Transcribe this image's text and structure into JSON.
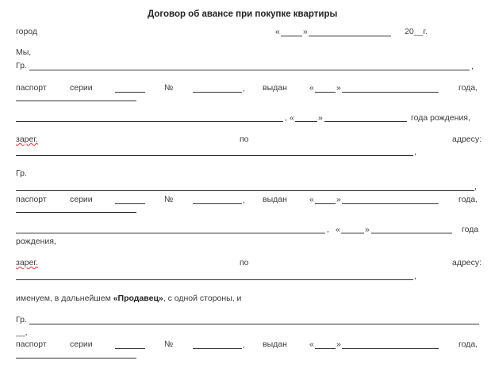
{
  "title": "Договор об авансе при покупке квартиры",
  "city": "город",
  "q_open": "«",
  "q_close": "»",
  "year": "20__г.",
  "we": "Мы,",
  "citizen": "Гр.",
  "comma": ",",
  "passport": "паспорт",
  "series": "серии",
  "number_sign": "№",
  "issued": "выдан",
  "year_word": "года,",
  "year_birth": "года рождения,",
  "year_plain": "года",
  "birth": "рождения,",
  "registered": "зарег.",
  "by": "по",
  "address": "адресу:",
  "named_prefix": "именуем, в дальнейшем ",
  "seller": "«Продавец»",
  "named_suffix": ", с одной стороны, и",
  "blank_comma": "__,"
}
